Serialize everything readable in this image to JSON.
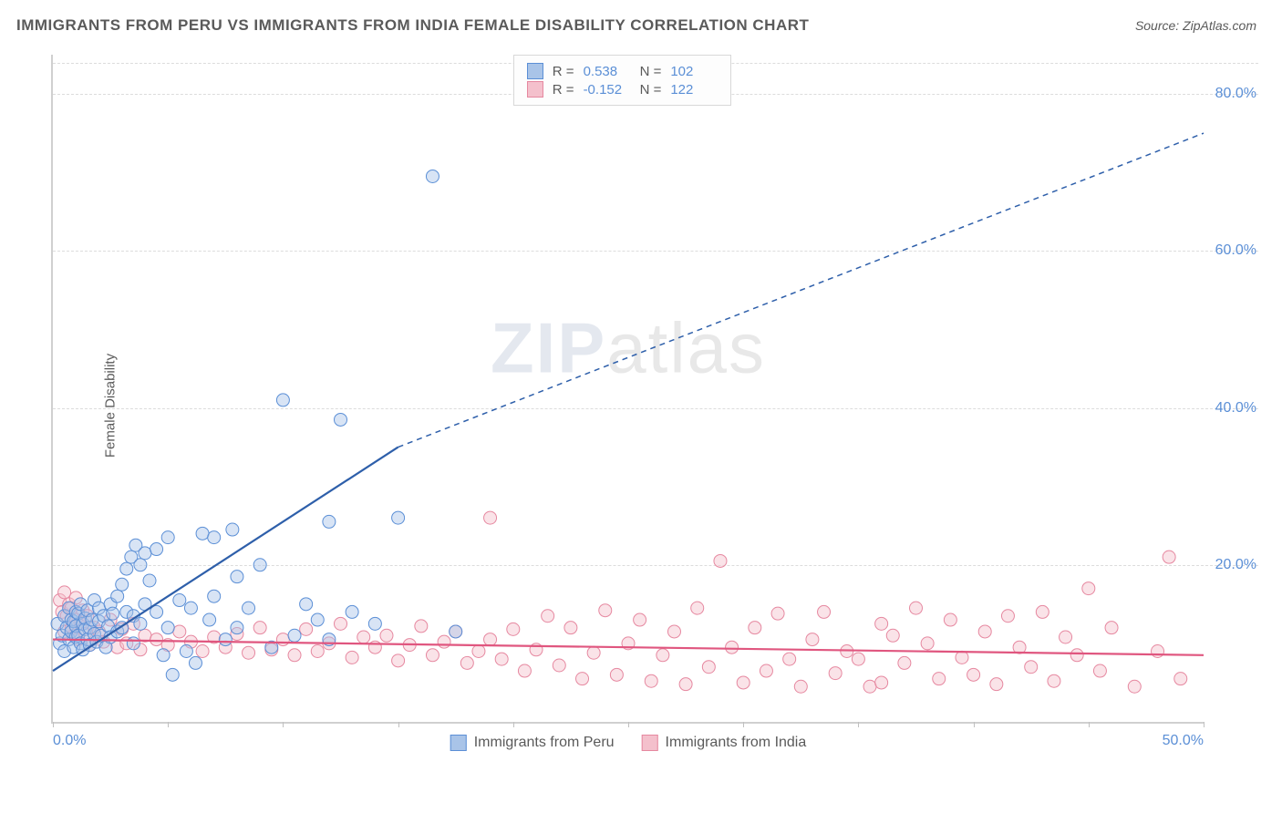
{
  "title": "IMMIGRANTS FROM PERU VS IMMIGRANTS FROM INDIA FEMALE DISABILITY CORRELATION CHART",
  "source_label": "Source: ",
  "source_name": "ZipAtlas.com",
  "y_axis_label": "Female Disability",
  "watermark_a": "ZIP",
  "watermark_b": "atlas",
  "chart": {
    "type": "scatter",
    "xlim": [
      0,
      50
    ],
    "ylim": [
      0,
      85
    ],
    "x_ticks": [
      0,
      5,
      10,
      15,
      20,
      25,
      30,
      35,
      40,
      45,
      50
    ],
    "x_tick_labels": {
      "0": "0.0%",
      "50": "50.0%"
    },
    "y_ticks": [
      20,
      40,
      60,
      80
    ],
    "y_tick_labels": [
      "20.0%",
      "40.0%",
      "60.0%",
      "80.0%"
    ],
    "grid_color": "#dcdcdc",
    "axis_color": "#d0d0d0",
    "background_color": "#ffffff",
    "marker_radius": 7,
    "marker_opacity": 0.45,
    "line_width_solid": 2.2,
    "line_width_dashed": 1.5,
    "dash_pattern": "6,5"
  },
  "series": {
    "peru": {
      "label": "Immigrants from Peru",
      "color_fill": "#a9c4e8",
      "color_stroke": "#5b8fd6",
      "line_color": "#2e5faa",
      "R": "0.538",
      "N": "102",
      "trend_solid": {
        "x1": 0,
        "y1": 6.5,
        "x2": 15,
        "y2": 35
      },
      "trend_dashed": {
        "x1": 15,
        "y1": 35,
        "x2": 50,
        "y2": 75
      },
      "points": [
        [
          0.2,
          12.5
        ],
        [
          0.3,
          10.0
        ],
        [
          0.4,
          11.0
        ],
        [
          0.5,
          13.5
        ],
        [
          0.5,
          9.0
        ],
        [
          0.6,
          12.0
        ],
        [
          0.7,
          14.5
        ],
        [
          0.7,
          10.5
        ],
        [
          0.8,
          11.5
        ],
        [
          0.8,
          13.0
        ],
        [
          0.9,
          9.5
        ],
        [
          0.9,
          12.8
        ],
        [
          1.0,
          14.0
        ],
        [
          1.0,
          10.8
        ],
        [
          1.0,
          12.2
        ],
        [
          1.1,
          11.0
        ],
        [
          1.1,
          13.8
        ],
        [
          1.2,
          15.0
        ],
        [
          1.2,
          10.0
        ],
        [
          1.3,
          12.5
        ],
        [
          1.3,
          9.2
        ],
        [
          1.4,
          11.8
        ],
        [
          1.4,
          13.2
        ],
        [
          1.5,
          10.5
        ],
        [
          1.5,
          14.2
        ],
        [
          1.6,
          12.0
        ],
        [
          1.6,
          9.8
        ],
        [
          1.7,
          13.0
        ],
        [
          1.8,
          11.2
        ],
        [
          1.8,
          15.5
        ],
        [
          1.9,
          10.2
        ],
        [
          2.0,
          12.8
        ],
        [
          2.0,
          14.5
        ],
        [
          2.1,
          11.0
        ],
        [
          2.2,
          13.5
        ],
        [
          2.3,
          9.5
        ],
        [
          2.4,
          12.2
        ],
        [
          2.5,
          15.0
        ],
        [
          2.5,
          10.8
        ],
        [
          2.6,
          13.8
        ],
        [
          2.8,
          11.5
        ],
        [
          2.8,
          16.0
        ],
        [
          3.0,
          17.5
        ],
        [
          3.0,
          12.0
        ],
        [
          3.2,
          14.0
        ],
        [
          3.2,
          19.5
        ],
        [
          3.4,
          21.0
        ],
        [
          3.5,
          10.0
        ],
        [
          3.5,
          13.5
        ],
        [
          3.6,
          22.5
        ],
        [
          3.8,
          20.0
        ],
        [
          3.8,
          12.5
        ],
        [
          4.0,
          21.5
        ],
        [
          4.0,
          15.0
        ],
        [
          4.2,
          18.0
        ],
        [
          4.5,
          22.0
        ],
        [
          4.5,
          14.0
        ],
        [
          4.8,
          8.5
        ],
        [
          5.0,
          12.0
        ],
        [
          5.0,
          23.5
        ],
        [
          5.2,
          6.0
        ],
        [
          5.5,
          15.5
        ],
        [
          5.8,
          9.0
        ],
        [
          6.0,
          14.5
        ],
        [
          6.2,
          7.5
        ],
        [
          6.5,
          24.0
        ],
        [
          6.8,
          13.0
        ],
        [
          7.0,
          23.5
        ],
        [
          7.0,
          16.0
        ],
        [
          7.5,
          10.5
        ],
        [
          7.8,
          24.5
        ],
        [
          8.0,
          18.5
        ],
        [
          8.0,
          12.0
        ],
        [
          8.5,
          14.5
        ],
        [
          9.0,
          20.0
        ],
        [
          9.5,
          9.5
        ],
        [
          10.0,
          41.0
        ],
        [
          10.5,
          11.0
        ],
        [
          11.0,
          15.0
        ],
        [
          11.5,
          13.0
        ],
        [
          12.0,
          25.5
        ],
        [
          12.0,
          10.5
        ],
        [
          12.5,
          38.5
        ],
        [
          13.0,
          14.0
        ],
        [
          14.0,
          12.5
        ],
        [
          15.0,
          26.0
        ],
        [
          16.5,
          69.5
        ],
        [
          17.5,
          11.5
        ]
      ]
    },
    "india": {
      "label": "Immigrants from India",
      "color_fill": "#f4c0cc",
      "color_stroke": "#e688a0",
      "line_color": "#e0567f",
      "R": "-0.152",
      "N": "122",
      "trend_solid": {
        "x1": 0,
        "y1": 10.5,
        "x2": 50,
        "y2": 8.5
      },
      "points": [
        [
          0.3,
          15.5
        ],
        [
          0.4,
          14.0
        ],
        [
          0.5,
          16.5
        ],
        [
          0.5,
          11.5
        ],
        [
          0.6,
          13.5
        ],
        [
          0.7,
          15.0
        ],
        [
          0.8,
          12.0
        ],
        [
          0.8,
          14.5
        ],
        [
          0.9,
          11.0
        ],
        [
          1.0,
          13.0
        ],
        [
          1.0,
          15.8
        ],
        [
          1.1,
          10.5
        ],
        [
          1.2,
          12.5
        ],
        [
          1.3,
          14.2
        ],
        [
          1.4,
          11.2
        ],
        [
          1.5,
          13.5
        ],
        [
          1.6,
          9.8
        ],
        [
          1.8,
          12.0
        ],
        [
          2.0,
          11.5
        ],
        [
          2.2,
          10.2
        ],
        [
          2.5,
          13.0
        ],
        [
          2.8,
          9.5
        ],
        [
          3.0,
          11.8
        ],
        [
          3.2,
          10.0
        ],
        [
          3.5,
          12.5
        ],
        [
          3.8,
          9.2
        ],
        [
          4.0,
          11.0
        ],
        [
          4.5,
          10.5
        ],
        [
          5.0,
          9.8
        ],
        [
          5.5,
          11.5
        ],
        [
          6.0,
          10.2
        ],
        [
          6.5,
          9.0
        ],
        [
          7.0,
          10.8
        ],
        [
          7.5,
          9.5
        ],
        [
          8.0,
          11.2
        ],
        [
          8.5,
          8.8
        ],
        [
          9.0,
          12.0
        ],
        [
          9.5,
          9.2
        ],
        [
          10.0,
          10.5
        ],
        [
          10.5,
          8.5
        ],
        [
          11.0,
          11.8
        ],
        [
          11.5,
          9.0
        ],
        [
          12.0,
          10.0
        ],
        [
          12.5,
          12.5
        ],
        [
          13.0,
          8.2
        ],
        [
          13.5,
          10.8
        ],
        [
          14.0,
          9.5
        ],
        [
          14.5,
          11.0
        ],
        [
          15.0,
          7.8
        ],
        [
          15.5,
          9.8
        ],
        [
          16.0,
          12.2
        ],
        [
          16.5,
          8.5
        ],
        [
          17.0,
          10.2
        ],
        [
          17.5,
          11.5
        ],
        [
          18.0,
          7.5
        ],
        [
          18.5,
          9.0
        ],
        [
          19.0,
          26.0
        ],
        [
          19.0,
          10.5
        ],
        [
          19.5,
          8.0
        ],
        [
          20.0,
          11.8
        ],
        [
          20.5,
          6.5
        ],
        [
          21.0,
          9.2
        ],
        [
          21.5,
          13.5
        ],
        [
          22.0,
          7.2
        ],
        [
          22.5,
          12.0
        ],
        [
          23.0,
          5.5
        ],
        [
          23.5,
          8.8
        ],
        [
          24.0,
          14.2
        ],
        [
          24.5,
          6.0
        ],
        [
          25.0,
          10.0
        ],
        [
          25.5,
          13.0
        ],
        [
          26.0,
          5.2
        ],
        [
          26.5,
          8.5
        ],
        [
          27.0,
          11.5
        ],
        [
          27.5,
          4.8
        ],
        [
          28.0,
          14.5
        ],
        [
          28.5,
          7.0
        ],
        [
          29.0,
          20.5
        ],
        [
          29.5,
          9.5
        ],
        [
          30.0,
          5.0
        ],
        [
          30.5,
          12.0
        ],
        [
          31.0,
          6.5
        ],
        [
          31.5,
          13.8
        ],
        [
          32.0,
          8.0
        ],
        [
          32.5,
          4.5
        ],
        [
          33.0,
          10.5
        ],
        [
          33.5,
          14.0
        ],
        [
          34.0,
          6.2
        ],
        [
          34.5,
          9.0
        ],
        [
          35.0,
          8.0
        ],
        [
          35.5,
          4.5
        ],
        [
          36.0,
          12.5
        ],
        [
          36.0,
          5.0
        ],
        [
          36.5,
          11.0
        ],
        [
          37.0,
          7.5
        ],
        [
          37.5,
          14.5
        ],
        [
          38.0,
          10.0
        ],
        [
          38.5,
          5.5
        ],
        [
          39.0,
          13.0
        ],
        [
          39.5,
          8.2
        ],
        [
          40.0,
          6.0
        ],
        [
          40.5,
          11.5
        ],
        [
          41.0,
          4.8
        ],
        [
          41.5,
          13.5
        ],
        [
          42.0,
          9.5
        ],
        [
          42.5,
          7.0
        ],
        [
          43.0,
          14.0
        ],
        [
          43.5,
          5.2
        ],
        [
          44.0,
          10.8
        ],
        [
          44.5,
          8.5
        ],
        [
          45.0,
          17.0
        ],
        [
          45.5,
          6.5
        ],
        [
          46.0,
          12.0
        ],
        [
          47.0,
          4.5
        ],
        [
          48.0,
          9.0
        ],
        [
          48.5,
          21.0
        ],
        [
          49.0,
          5.5
        ]
      ]
    }
  },
  "stats_labels": {
    "r": "R =",
    "n": "N ="
  }
}
